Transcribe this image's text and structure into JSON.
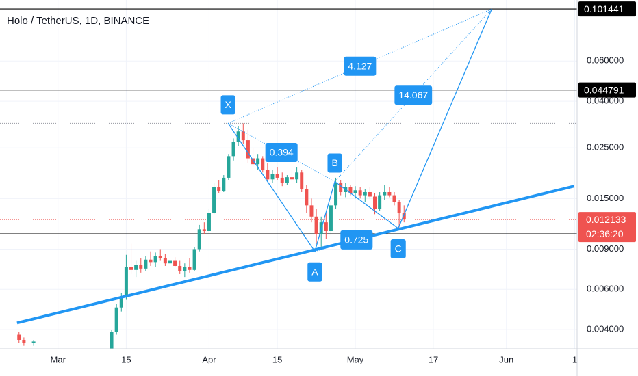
{
  "chart_data": {
    "type": "candlestick",
    "title": "Holo / TetherUS, 1D, BINANCE",
    "log_scale": true,
    "grid": true,
    "up_color": "#26a69a",
    "down_color": "#ef5350",
    "ylim": [
      0.0033,
      0.111
    ],
    "yticks": [
      {
        "value": 0.06,
        "label": "0.060000"
      },
      {
        "value": 0.04,
        "label": "0.040000"
      },
      {
        "value": 0.025,
        "label": "0.025000"
      },
      {
        "value": 0.015,
        "label": "0.015000"
      },
      {
        "value": 0.009,
        "label": "0.009000"
      },
      {
        "value": 0.006,
        "label": "0.006000"
      },
      {
        "value": 0.004,
        "label": "0.004000"
      }
    ],
    "xlim": [
      -11.9,
      106.5
    ],
    "xticks": [
      {
        "value": 0,
        "label": "Mar"
      },
      {
        "value": 14,
        "label": "15"
      },
      {
        "value": 31,
        "label": "Apr"
      },
      {
        "value": 45,
        "label": "15"
      },
      {
        "value": 61,
        "label": "May"
      },
      {
        "value": 77,
        "label": "17"
      },
      {
        "value": 92,
        "label": "Jun"
      },
      {
        "value": 106,
        "label": "1"
      }
    ],
    "candles": {
      "x": [
        -8,
        -7,
        -5,
        11,
        12,
        13,
        14,
        15,
        16,
        17,
        18,
        19,
        20,
        21,
        22,
        23,
        24,
        25,
        26,
        27,
        28,
        29,
        30,
        31,
        32,
        33,
        34,
        35,
        36,
        37,
        38,
        39,
        40,
        41,
        42,
        43,
        44,
        45,
        46,
        47,
        48,
        49,
        50,
        51,
        52,
        53,
        54,
        55,
        56,
        57,
        58,
        59,
        60,
        61,
        62,
        63,
        64,
        65,
        66,
        67,
        68,
        69,
        70,
        71
      ],
      "open": [
        0.0038,
        0.0036,
        0.0035,
        0.0032,
        0.0039,
        0.005,
        0.0056,
        0.0075,
        0.0073,
        0.0077,
        0.0074,
        0.0081,
        0.0079,
        0.0084,
        0.0082,
        0.0078,
        0.008,
        0.0076,
        0.0072,
        0.0075,
        0.0073,
        0.009,
        0.011,
        0.0108,
        0.013,
        0.0168,
        0.0162,
        0.0185,
        0.023,
        0.0265,
        0.0295,
        0.027,
        0.0225,
        0.0212,
        0.0225,
        0.02,
        0.0182,
        0.0192,
        0.0185,
        0.0175,
        0.0186,
        0.0182,
        0.0195,
        0.0165,
        0.014,
        0.0125,
        0.0105,
        0.0118,
        0.0108,
        0.014,
        0.0175,
        0.016,
        0.0168,
        0.0158,
        0.0163,
        0.0155,
        0.016,
        0.0153,
        0.0135,
        0.0155,
        0.016,
        0.0155,
        0.0145,
        0.013
      ],
      "high": [
        0.0039,
        0.0037,
        0.0036,
        0.004,
        0.0052,
        0.0058,
        0.0085,
        0.0095,
        0.008,
        0.0082,
        0.0084,
        0.0088,
        0.0087,
        0.009,
        0.0086,
        0.0083,
        0.0083,
        0.008,
        0.0078,
        0.0082,
        0.0092,
        0.0115,
        0.0118,
        0.0135,
        0.0175,
        0.018,
        0.019,
        0.0235,
        0.0275,
        0.031,
        0.032,
        0.03,
        0.025,
        0.0235,
        0.023,
        0.0215,
        0.02,
        0.0205,
        0.0195,
        0.019,
        0.02,
        0.0205,
        0.02,
        0.0172,
        0.015,
        0.0135,
        0.0125,
        0.013,
        0.0145,
        0.0185,
        0.018,
        0.0175,
        0.0172,
        0.017,
        0.0168,
        0.0165,
        0.0168,
        0.0158,
        0.016,
        0.0172,
        0.0168,
        0.016,
        0.0148,
        0.014
      ],
      "low": [
        0.0035,
        0.0034,
        0.0034,
        0.003,
        0.0038,
        0.0048,
        0.0054,
        0.007,
        0.0068,
        0.0071,
        0.0072,
        0.0076,
        0.0075,
        0.008,
        0.0076,
        0.0074,
        0.0075,
        0.007,
        0.0068,
        0.0071,
        0.0072,
        0.0088,
        0.0105,
        0.0106,
        0.0128,
        0.0158,
        0.016,
        0.018,
        0.022,
        0.0255,
        0.026,
        0.0215,
        0.0205,
        0.02,
        0.0195,
        0.0178,
        0.0175,
        0.018,
        0.017,
        0.0172,
        0.0178,
        0.0175,
        0.016,
        0.013,
        0.0118,
        0.0095,
        0.009,
        0.01,
        0.0104,
        0.0135,
        0.0155,
        0.0152,
        0.0155,
        0.015,
        0.015,
        0.0145,
        0.015,
        0.0128,
        0.0132,
        0.0148,
        0.0152,
        0.014,
        0.0112,
        0.0118
      ],
      "close": [
        0.0036,
        0.0035,
        0.00355,
        0.0039,
        0.005,
        0.0056,
        0.0075,
        0.0073,
        0.0077,
        0.0074,
        0.0081,
        0.0079,
        0.0084,
        0.0082,
        0.0078,
        0.008,
        0.0076,
        0.0072,
        0.0075,
        0.0073,
        0.009,
        0.011,
        0.0108,
        0.013,
        0.0168,
        0.0162,
        0.0185,
        0.023,
        0.0265,
        0.0295,
        0.027,
        0.0225,
        0.0212,
        0.0225,
        0.02,
        0.0182,
        0.0192,
        0.0185,
        0.0175,
        0.0186,
        0.0182,
        0.0195,
        0.0165,
        0.014,
        0.0125,
        0.0105,
        0.0118,
        0.0108,
        0.014,
        0.0175,
        0.016,
        0.0168,
        0.0158,
        0.0163,
        0.0155,
        0.016,
        0.0153,
        0.0135,
        0.0155,
        0.016,
        0.0155,
        0.0145,
        0.013,
        0.012133
      ]
    },
    "price_lines": [
      0.101441,
      0.044791
    ],
    "support": 0.0105,
    "last_price": 0.012133,
    "countdown": "02:36:20",
    "trendline": {
      "x": [
        -8.4,
        105.9
      ],
      "y": [
        0.00428,
        0.017
      ]
    },
    "pattern": {
      "x": [
        34.9,
        52.7,
        56.8,
        69.8,
        89
      ],
      "y": [
        0.032,
        0.0088,
        0.0178,
        0.0111,
        0.101441
      ],
      "labels": [
        "X",
        "A",
        "B",
        "C",
        null
      ]
    },
    "ratios": [
      0.394,
      0.725,
      4.127,
      14.067
    ],
    "pattern_color": "#2196f3"
  }
}
